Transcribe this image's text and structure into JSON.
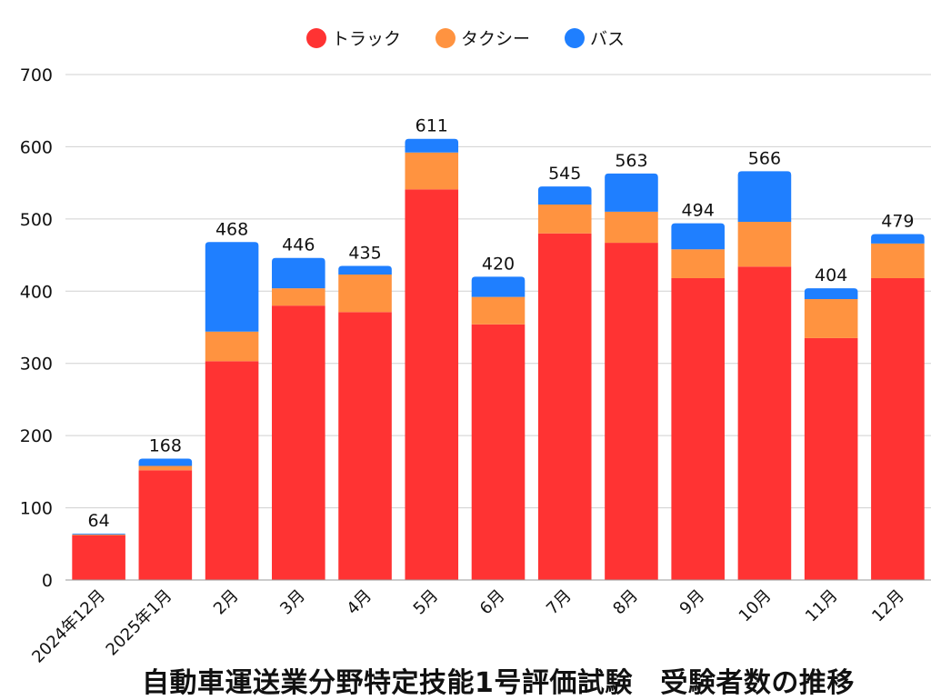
{
  "chart_data": {
    "type": "bar",
    "stacked": true,
    "title": "自動車運送業分野特定技能1号評価試験　受験者数の推移",
    "xlabel": "",
    "ylabel": "",
    "ylim": [
      0,
      700
    ],
    "yticks": [
      0,
      100,
      200,
      300,
      400,
      500,
      600,
      700
    ],
    "grid": true,
    "legend_position": "top-center",
    "categories": [
      "2024年12月",
      "2025年1月",
      "2月",
      "3月",
      "4月",
      "5月",
      "6月",
      "7月",
      "8月",
      "9月",
      "10月",
      "11月",
      "12月"
    ],
    "series": [
      {
        "name": "トラック",
        "color": "#ff3333",
        "values": [
          62,
          152,
          303,
          380,
          371,
          541,
          354,
          480,
          467,
          418,
          434,
          335,
          418
        ]
      },
      {
        "name": "タクシー",
        "color": "#ff9340",
        "values": [
          1,
          6,
          41,
          24,
          52,
          51,
          38,
          40,
          43,
          40,
          62,
          54,
          48
        ]
      },
      {
        "name": "バス",
        "color": "#1f7fff",
        "values": [
          1,
          10,
          124,
          42,
          12,
          19,
          28,
          25,
          53,
          36,
          70,
          15,
          13
        ]
      }
    ],
    "totals": [
      64,
      168,
      468,
      446,
      435,
      611,
      420,
      545,
      563,
      494,
      566,
      404,
      479
    ]
  }
}
